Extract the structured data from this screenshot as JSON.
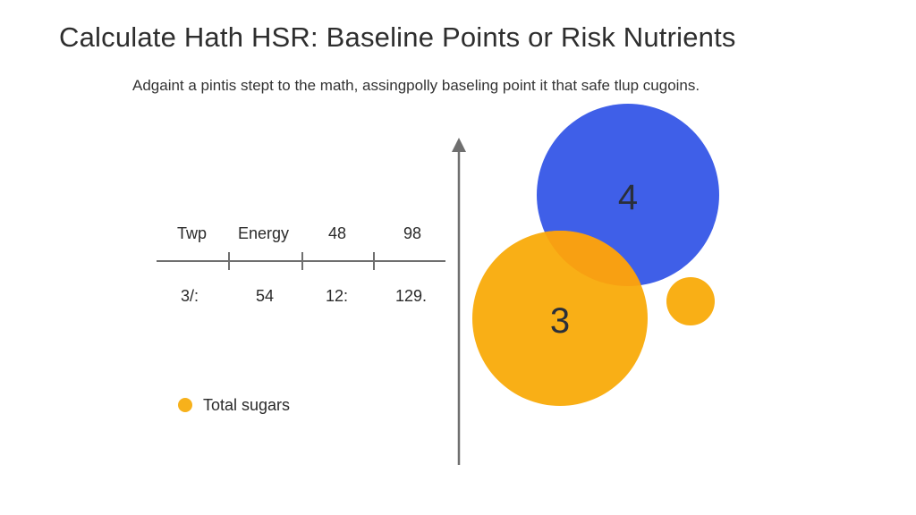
{
  "title": "Calculate Hath HSR: Baseline Points or Risk Nutrients",
  "subtitle": "Adgaint a pintis stept to the math, assingpolly baseling point it that safe tlup cugoins.",
  "table": {
    "header": [
      "Twp",
      "Energy",
      "48",
      "98"
    ],
    "row": [
      "3/:",
      "54",
      "12:",
      "129."
    ]
  },
  "legend": {
    "label": "Total sugars",
    "color": "#F7B11B"
  },
  "bubbles": {
    "blue": {
      "label": "4",
      "color": "#3F5FE8"
    },
    "orange": {
      "label": "3",
      "color": "#F9AF16"
    },
    "small_color": "#F9AF16",
    "overlap_color": "#F8A012"
  },
  "colors": {
    "axis": "#6f6f6f",
    "text": "#2a2a2a"
  }
}
